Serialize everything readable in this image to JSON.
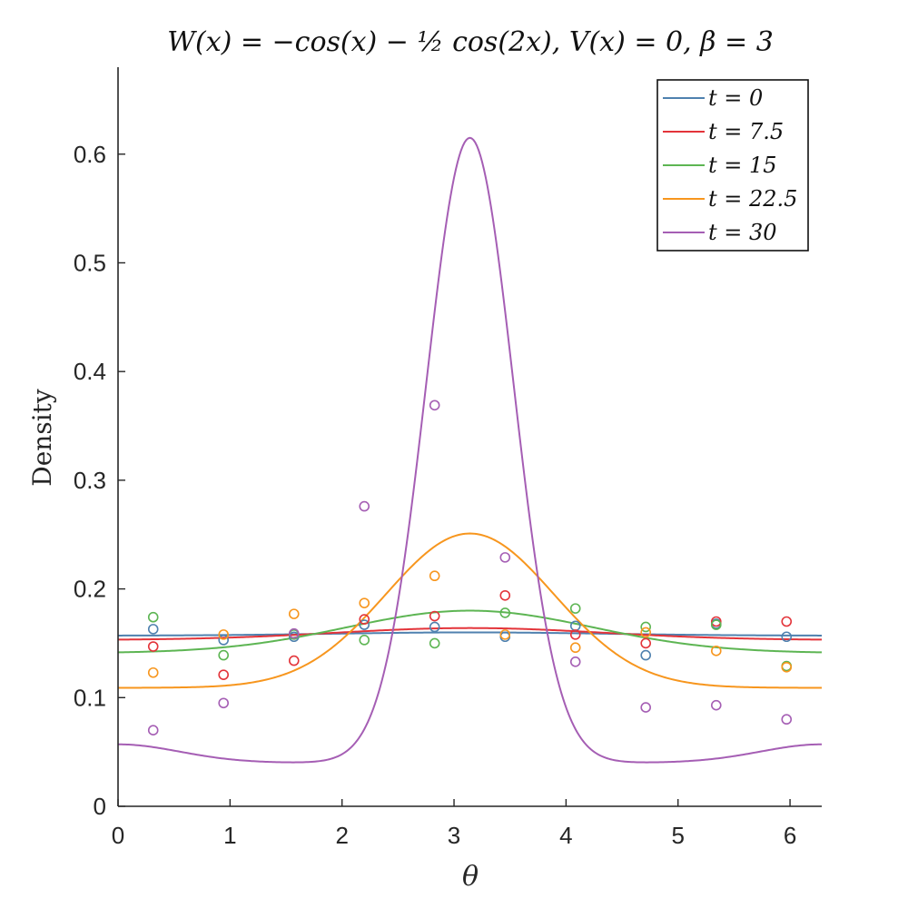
{
  "chart_data": {
    "type": "line",
    "title": "W(x) = −cos(x) − ½ cos(2x), V(x) = 0, β = 3",
    "xlabel": "θ",
    "ylabel": "Density",
    "xlim": [
      0,
      6.2832
    ],
    "ylim": [
      0,
      0.68
    ],
    "xticks": [
      0,
      1,
      2,
      3,
      4,
      5,
      6
    ],
    "yticks": [
      0,
      0.1,
      0.2,
      0.3,
      0.4,
      0.5,
      0.6
    ],
    "xtick_labels": [
      "0",
      "1",
      "2",
      "3",
      "4",
      "5",
      "6"
    ],
    "ytick_labels": [
      "0",
      "0.1",
      "0.2",
      "0.3",
      "0.4",
      "0.5",
      "0.6"
    ],
    "legend_position": "top-right",
    "marker_x": [
      0.314,
      0.942,
      1.571,
      2.199,
      2.827,
      3.456,
      4.084,
      4.712,
      5.341,
      5.969
    ],
    "series": [
      {
        "name": "t = 0",
        "color": "#4f81af",
        "curve": {
          "base": 0.157,
          "amp": 0.003,
          "width": 1.2
        },
        "markers": [
          0.163,
          0.153,
          0.156,
          0.167,
          0.165,
          0.156,
          0.166,
          0.139,
          0.168,
          0.156
        ]
      },
      {
        "name": "t = 7.5",
        "color": "#e3343a",
        "curve": {
          "base": 0.153,
          "amp": 0.011,
          "width": 1.2
        },
        "markers": [
          0.147,
          0.121,
          0.134,
          0.172,
          0.175,
          0.194,
          0.158,
          0.15,
          0.17,
          0.17
        ]
      },
      {
        "name": "t = 15",
        "color": "#5db553",
        "curve": {
          "base": 0.141,
          "amp": 0.039,
          "width": 1.1
        },
        "markers": [
          0.174,
          0.139,
          0.158,
          0.153,
          0.15,
          0.178,
          0.182,
          0.165,
          0.167,
          0.129
        ]
      },
      {
        "name": "t = 22.5",
        "color": "#f7961e",
        "curve": {
          "base": 0.109,
          "amp": 0.142,
          "width": 0.75
        },
        "markers": [
          0.123,
          0.158,
          0.177,
          0.187,
          0.212,
          0.158,
          0.146,
          0.16,
          0.143,
          0.128
        ]
      },
      {
        "name": "t = 30",
        "color": "#a55eb4",
        "curve": {
          "base": 0.04,
          "amp": 0.575,
          "width": 0.39,
          "tail_amp": 0.017,
          "tail_freq": 1.4
        },
        "markers": [
          0.07,
          0.095,
          0.159,
          0.276,
          0.369,
          0.229,
          0.133,
          0.091,
          0.093,
          0.08
        ]
      }
    ]
  }
}
